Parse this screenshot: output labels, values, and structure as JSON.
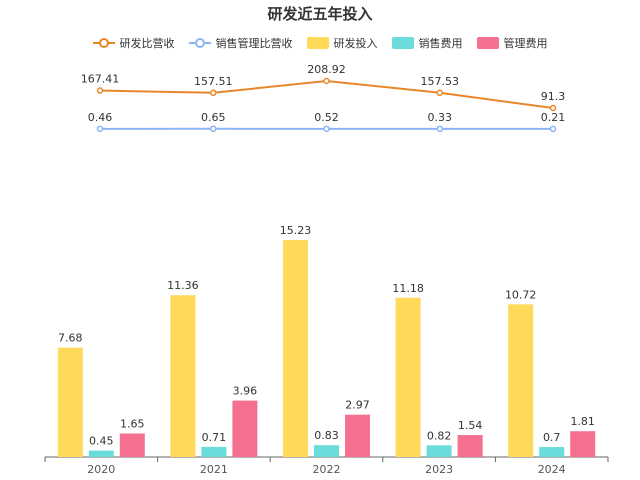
{
  "chart_data": {
    "title": "研发近五年投入",
    "categories": [
      "2020",
      "2021",
      "2022",
      "2023",
      "2024"
    ],
    "line_series": [
      {
        "name": "研发比营收",
        "values": [
          167.41,
          157.51,
          208.92,
          157.53,
          91.3
        ],
        "color": "#E8872A"
      },
      {
        "name": "销售管理比营收",
        "values": [
          0.46,
          0.65,
          0.52,
          0.33,
          0.21
        ],
        "color": "#8DB4F5"
      }
    ],
    "bar_series": [
      {
        "name": "研发投入",
        "values": [
          7.68,
          11.36,
          15.23,
          11.18,
          10.72
        ],
        "color": "#FFD95A"
      },
      {
        "name": "销售费用",
        "values": [
          0.45,
          0.71,
          0.83,
          0.82,
          0.7
        ],
        "color": "#6ADCDC"
      },
      {
        "name": "管理费用",
        "values": [
          1.65,
          3.96,
          2.97,
          1.54,
          1.81
        ],
        "color": "#F5708F"
      }
    ],
    "types": [
      "line",
      "bar"
    ],
    "legend_position": "top-center",
    "grid": false
  }
}
